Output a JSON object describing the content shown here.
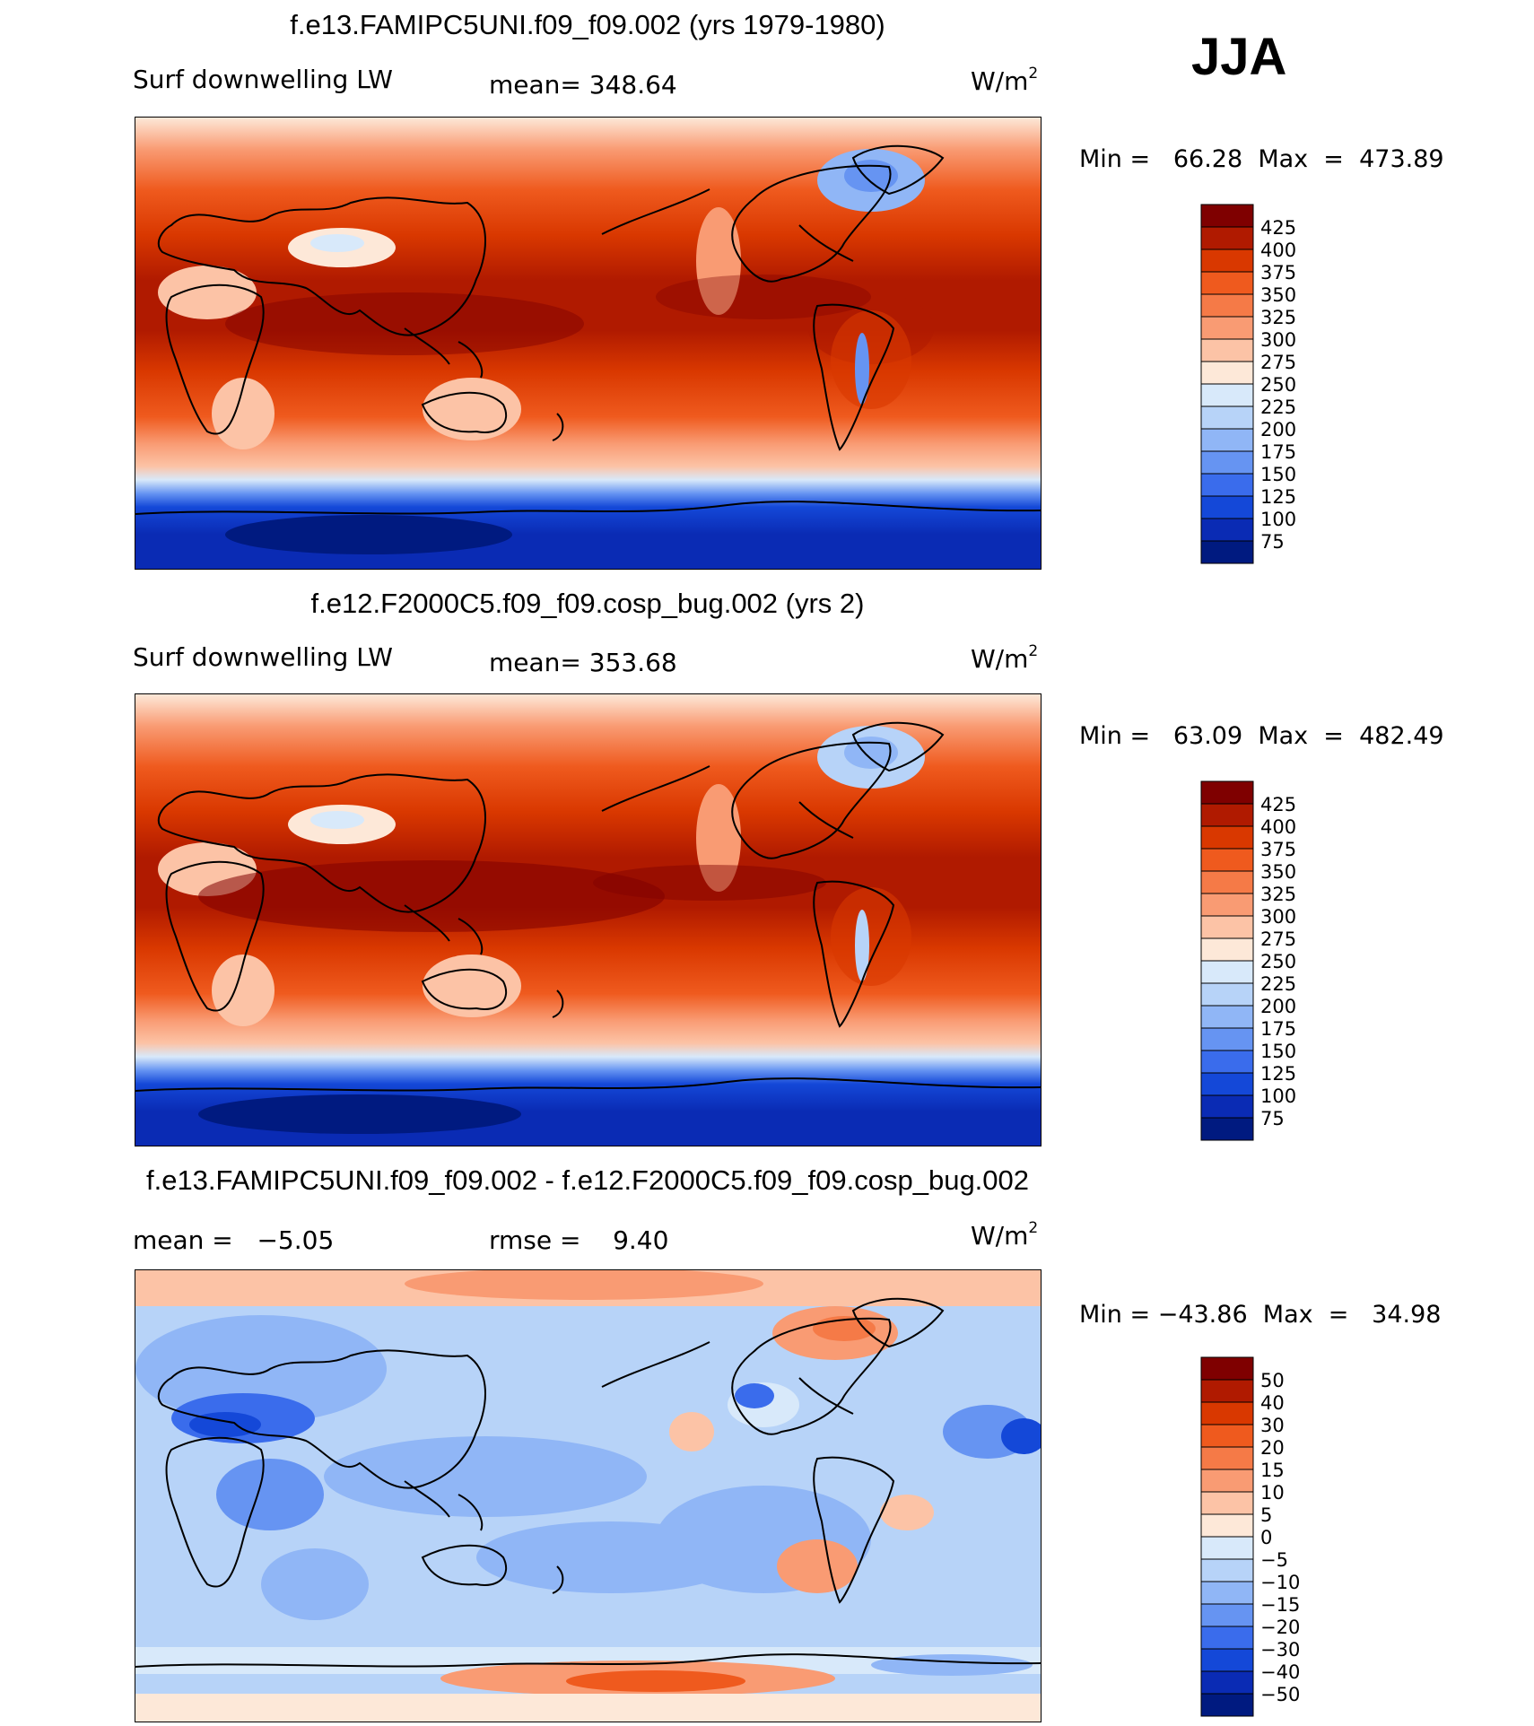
{
  "season": "JJA",
  "panels": [
    {
      "title": "f.e13.FAMIPC5UNI.f09_f09.002 (yrs 1979-1980)",
      "label_left": "Surf downwelling LW",
      "label_mid": "mean= 348.64",
      "unit_base": "W/m",
      "unit_exp": "2",
      "minmax": "Min =   66.28  Max  =  473.89"
    },
    {
      "title": "f.e12.F2000C5.f09_f09.cosp_bug.002 (yrs 2)",
      "label_left": "Surf downwelling LW",
      "label_mid": "mean= 353.68",
      "unit_base": "W/m",
      "unit_exp": "2",
      "minmax": "Min =   63.09  Max  =  482.49"
    },
    {
      "title": "f.e13.FAMIPC5UNI.f09_f09.002 - f.e12.F2000C5.f09_f09.cosp_bug.002",
      "label_left": "mean =   −5.05",
      "label_mid": "rmse =    9.40",
      "unit_base": "W/m",
      "unit_exp": "2",
      "minmax": "Min = −43.86  Max  =   34.98"
    }
  ],
  "chart_data": [
    {
      "type": "heatmap",
      "title": "f.e13.FAMIPC5UNI.f09_f09.002 (yrs 1979-1980)",
      "variable": "Surf downwelling LW",
      "units": "W/m2",
      "mean": 348.64,
      "min": 66.28,
      "max": 473.89,
      "colorbar": {
        "levels": [
          "425",
          "400",
          "375",
          "350",
          "325",
          "300",
          "275",
          "250",
          "225",
          "200",
          "175",
          "150",
          "125",
          "100",
          "75"
        ],
        "colors": [
          "#7f0000",
          "#b01a00",
          "#d93800",
          "#ef5a1e",
          "#f57a47",
          "#f99b73",
          "#fcc3a6",
          "#fde8d8",
          "#d8e9fa",
          "#b7d3f8",
          "#90b6f6",
          "#6694f2",
          "#3a6cec",
          "#1448d8",
          "#0a2bb4",
          "#001a80"
        ]
      },
      "projection": "cylindrical equidistant, 30E-30E",
      "tropics_value_approx": 410,
      "antarctic_value_approx": 90
    },
    {
      "type": "heatmap",
      "title": "f.e12.F2000C5.f09_f09.cosp_bug.002 (yrs 2)",
      "variable": "Surf downwelling LW",
      "units": "W/m2",
      "mean": 353.68,
      "min": 63.09,
      "max": 482.49,
      "colorbar": {
        "levels": [
          "425",
          "400",
          "375",
          "350",
          "325",
          "300",
          "275",
          "250",
          "225",
          "200",
          "175",
          "150",
          "125",
          "100",
          "75"
        ],
        "colors": [
          "#7f0000",
          "#b01a00",
          "#d93800",
          "#ef5a1e",
          "#f57a47",
          "#f99b73",
          "#fcc3a6",
          "#fde8d8",
          "#d8e9fa",
          "#b7d3f8",
          "#90b6f6",
          "#6694f2",
          "#3a6cec",
          "#1448d8",
          "#0a2bb4",
          "#001a80"
        ]
      },
      "projection": "cylindrical equidistant, 30E-30E",
      "tropics_value_approx": 415,
      "antarctic_value_approx": 85
    },
    {
      "type": "heatmap",
      "title": "f.e13.FAMIPC5UNI.f09_f09.002 - f.e12.F2000C5.f09_f09.cosp_bug.002",
      "variable": "difference",
      "units": "W/m2",
      "mean": -5.05,
      "rmse": 9.4,
      "min": -43.86,
      "max": 34.98,
      "colorbar": {
        "levels": [
          "50",
          "40",
          "30",
          "20",
          "15",
          "10",
          "5",
          "0",
          "−5",
          "−10",
          "−15",
          "−20",
          "−30",
          "−40",
          "−50"
        ],
        "colors": [
          "#7f0000",
          "#b01a00",
          "#d93800",
          "#ef5a1e",
          "#f57a47",
          "#f99b73",
          "#fcc3a6",
          "#fde8d8",
          "#d8e9fa",
          "#b7d3f8",
          "#90b6f6",
          "#6694f2",
          "#3a6cec",
          "#1448d8",
          "#0a2bb4",
          "#001a80"
        ]
      },
      "projection": "cylindrical equidistant, 30E-30E",
      "dominant_sign": "negative (blue)"
    }
  ]
}
